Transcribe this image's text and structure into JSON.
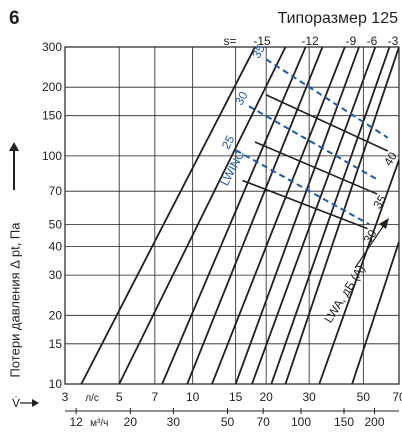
{
  "header": {
    "page_number": "6",
    "size_title": "Типоразмер 125"
  },
  "chart_data": {
    "type": "line",
    "title": "Типоразмер 125",
    "ylabel": "Потери давления Δ pt, Па",
    "y_scale": "log",
    "x_scale": "log",
    "ylim": [
      10,
      300
    ],
    "xlim": [
      3,
      70
    ],
    "grid": true,
    "y_ticks": [
      10,
      15,
      20,
      30,
      40,
      50,
      70,
      100,
      150,
      200,
      300
    ],
    "x_ticks_ls": [
      3,
      5,
      7,
      10,
      15,
      20,
      30,
      50,
      70
    ],
    "x_ticks_m3h": [
      12,
      20,
      30,
      50,
      70,
      100,
      150,
      200
    ],
    "x_unit_ls": "л/с",
    "x_unit_m3h": "м³/ч",
    "x_symbol": "V̇",
    "s_label": "s=",
    "s_values": [
      -15,
      -12,
      -9,
      -6,
      -3
    ],
    "series_black": [
      {
        "name": "line-1",
        "x": [
          3.5,
          18
        ],
        "y": [
          10,
          300
        ]
      },
      {
        "name": "line-2",
        "x": [
          5,
          24
        ],
        "y": [
          10,
          300
        ]
      },
      {
        "name": "line-3",
        "x": [
          7.5,
          29
        ],
        "y": [
          10,
          300
        ]
      },
      {
        "name": "line-4",
        "x": [
          9.5,
          34
        ],
        "y": [
          10,
          300
        ]
      },
      {
        "name": "line-5",
        "x": [
          12,
          42
        ],
        "y": [
          10,
          300
        ]
      },
      {
        "name": "line-6",
        "x": [
          15,
          48
        ],
        "y": [
          10,
          300
        ]
      },
      {
        "name": "line-7",
        "x": [
          17.5,
          56
        ],
        "y": [
          10,
          300
        ]
      },
      {
        "name": "line-8",
        "x": [
          21,
          64
        ],
        "y": [
          10,
          300
        ]
      },
      {
        "name": "line-9",
        "x": [
          24,
          70
        ],
        "y": [
          10,
          300
        ]
      },
      {
        "name": "line-10",
        "x": [
          33,
          70
        ],
        "y": [
          10,
          96
        ]
      },
      {
        "name": "line-11",
        "x": [
          45,
          70
        ],
        "y": [
          10,
          42
        ]
      }
    ],
    "lwinc_label": "LWINC",
    "lwinc_series": [
      {
        "name": "35",
        "x": [
          20,
          63
        ],
        "y": [
          265,
          120
        ]
      },
      {
        "name": "30",
        "x": [
          17,
          58
        ],
        "y": [
          165,
          78
        ]
      },
      {
        "name": "25",
        "x": [
          15,
          53
        ],
        "y": [
          106,
          50
        ]
      }
    ],
    "lwinc_values": [
      "35",
      "30",
      "25"
    ],
    "lwa_label": "LWA, дБ (А)",
    "lwa_series": [
      {
        "name": "40",
        "x": [
          20,
          63
        ],
        "y": [
          185,
          105
        ]
      },
      {
        "name": "35",
        "x": [
          18,
          57
        ],
        "y": [
          115,
          68
        ]
      },
      {
        "name": "30",
        "x": [
          16,
          52
        ],
        "y": [
          78,
          48
        ]
      }
    ],
    "lwa_values": [
      "40",
      "35",
      "30"
    ]
  }
}
